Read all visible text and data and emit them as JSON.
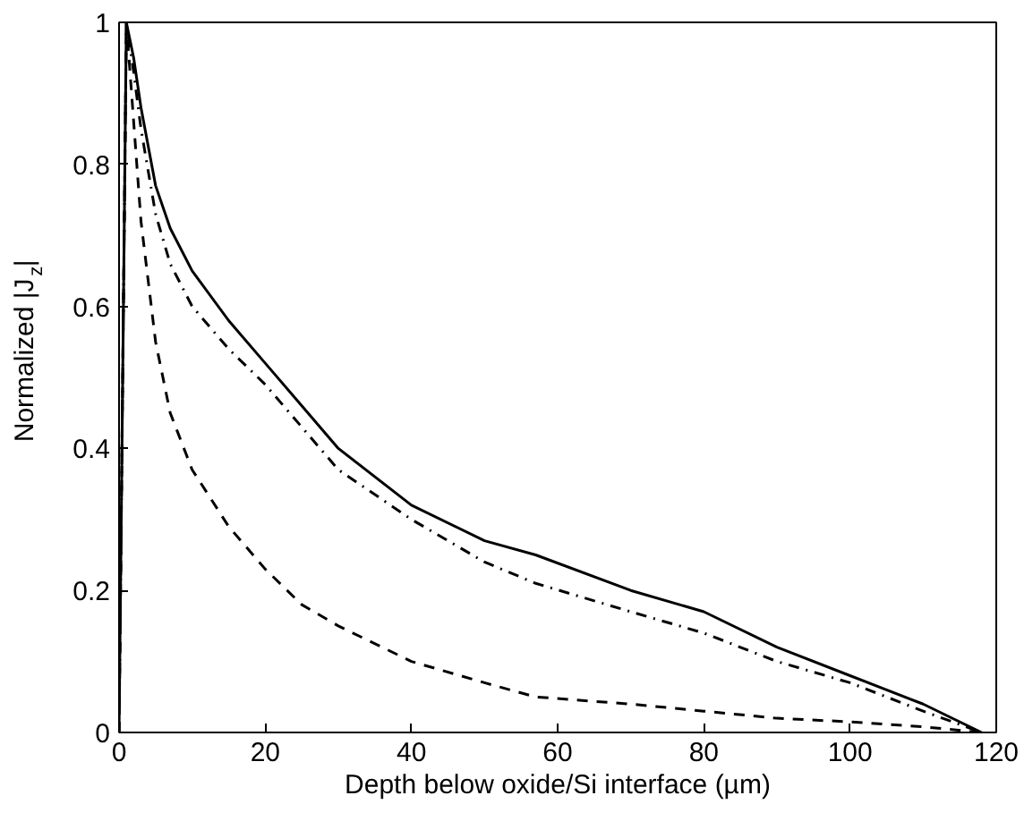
{
  "chart_data": {
    "type": "line",
    "xlabel": "Depth below oxide/Si interface (µm)",
    "ylabel": "Normalized |J$_{z}$|",
    "xlim": [
      0,
      120
    ],
    "ylim": [
      0,
      1
    ],
    "xticks": [
      0,
      20,
      40,
      60,
      80,
      100,
      120
    ],
    "yticks": [
      0,
      0.2,
      0.4,
      0.6,
      0.8,
      1
    ],
    "grid": false,
    "series": [
      {
        "color": "#000000",
        "line_style": "solid",
        "x": [
          0,
          1,
          2,
          3,
          5,
          7,
          10,
          15,
          20,
          25,
          30,
          40,
          50,
          57,
          70,
          80,
          90,
          100,
          110,
          118
        ],
        "values": [
          0,
          1,
          0.95,
          0.88,
          0.77,
          0.71,
          0.65,
          0.58,
          0.52,
          0.46,
          0.4,
          0.32,
          0.27,
          0.25,
          0.2,
          0.17,
          0.12,
          0.08,
          0.04,
          0
        ]
      },
      {
        "color": "#000000",
        "line_style": "dashdot",
        "x": [
          0,
          1,
          2,
          3,
          5,
          7,
          10,
          15,
          20,
          25,
          30,
          40,
          50,
          57,
          70,
          80,
          90,
          100,
          110,
          118
        ],
        "values": [
          0,
          1,
          0.93,
          0.85,
          0.73,
          0.66,
          0.6,
          0.54,
          0.49,
          0.43,
          0.37,
          0.3,
          0.24,
          0.21,
          0.17,
          0.14,
          0.1,
          0.07,
          0.03,
          0
        ]
      },
      {
        "color": "#000000",
        "line_style": "dashed",
        "x": [
          0,
          1,
          2,
          3,
          5,
          7,
          10,
          15,
          20,
          25,
          30,
          40,
          50,
          57,
          70,
          80,
          90,
          100,
          110,
          118
        ],
        "values": [
          0,
          1,
          0.86,
          0.72,
          0.55,
          0.45,
          0.37,
          0.29,
          0.23,
          0.18,
          0.15,
          0.1,
          0.07,
          0.05,
          0.04,
          0.03,
          0.02,
          0.015,
          0.008,
          0
        ]
      }
    ]
  }
}
